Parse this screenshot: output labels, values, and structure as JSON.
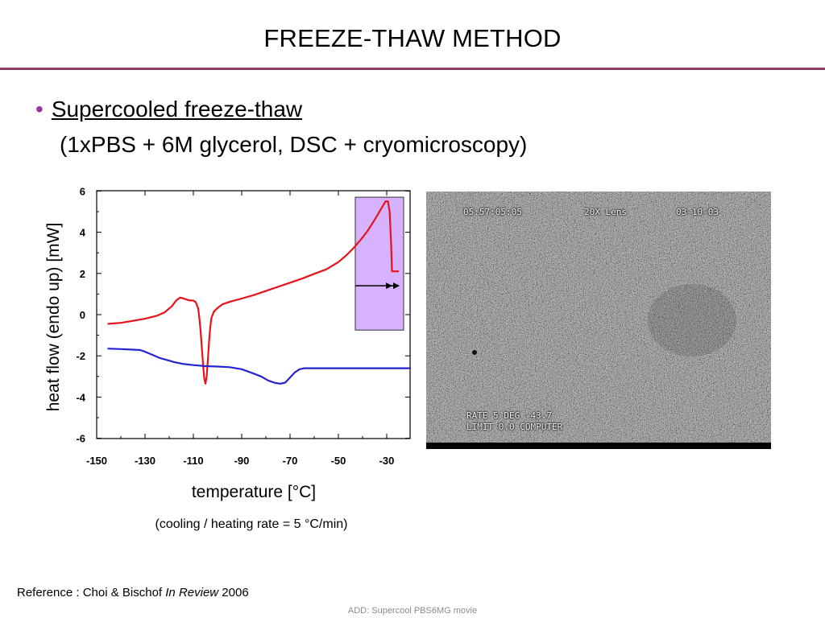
{
  "slide": {
    "title": "FREEZE-THAW METHOD",
    "bullet_marker": "•",
    "bullet_main": "Supercooled freeze-thaw",
    "bullet_sub": "(1xPBS + 6M glycerol, DSC + cryomicroscopy)",
    "reference_prefix": "Reference : Choi & Bischof ",
    "reference_italic": "In Review",
    "reference_suffix": " 2006",
    "footnote": "ADD: Supercool PBS6MG movie",
    "accent_color": "#8e3a66"
  },
  "chart_data": {
    "type": "line",
    "xlabel": "temperature [°C]",
    "ylabel": "heat flow (endo up) [mW]",
    "caption": "(cooling / heating rate = 5 °C/min)",
    "xlim": [
      -150,
      -20
    ],
    "ylim": [
      -6,
      6
    ],
    "xticks": [
      -150,
      -130,
      -110,
      -90,
      -70,
      -50,
      -30
    ],
    "yticks": [
      6,
      4,
      2,
      0,
      -2,
      -4,
      -6
    ],
    "grid": false,
    "series": [
      {
        "color": "#e8121a",
        "points": [
          [
            -145.5,
            -0.45
          ],
          [
            -140,
            -0.4
          ],
          [
            -135,
            -0.3
          ],
          [
            -130,
            -0.2
          ],
          [
            -125,
            -0.05
          ],
          [
            -122,
            0.1
          ],
          [
            -119,
            0.4
          ],
          [
            -117,
            0.7
          ],
          [
            -115.5,
            0.83
          ],
          [
            -114,
            0.78
          ],
          [
            -112,
            0.7
          ],
          [
            -110,
            0.68
          ],
          [
            -109,
            0.6
          ],
          [
            -108,
            0.3
          ],
          [
            -107.5,
            -0.2
          ],
          [
            -107,
            -0.8
          ],
          [
            -106.5,
            -1.6
          ],
          [
            -106,
            -2.4
          ],
          [
            -105.5,
            -3.1
          ],
          [
            -105,
            -3.35
          ],
          [
            -104.5,
            -3.0
          ],
          [
            -104,
            -2.2
          ],
          [
            -103.5,
            -1.3
          ],
          [
            -103,
            -0.6
          ],
          [
            -102.5,
            -0.15
          ],
          [
            -101.5,
            0.15
          ],
          [
            -100,
            0.32
          ],
          [
            -98,
            0.5
          ],
          [
            -95,
            0.62
          ],
          [
            -90,
            0.78
          ],
          [
            -85,
            0.95
          ],
          [
            -80,
            1.15
          ],
          [
            -75,
            1.35
          ],
          [
            -70,
            1.55
          ],
          [
            -65,
            1.75
          ],
          [
            -60,
            1.98
          ],
          [
            -55,
            2.2
          ],
          [
            -50,
            2.55
          ],
          [
            -47,
            2.85
          ],
          [
            -44,
            3.2
          ],
          [
            -41,
            3.6
          ],
          [
            -38,
            4.05
          ],
          [
            -35,
            4.6
          ],
          [
            -33,
            5.0
          ],
          [
            -31.5,
            5.3
          ],
          [
            -30.5,
            5.5
          ],
          [
            -29.5,
            5.5
          ],
          [
            -28.8,
            5.0
          ],
          [
            -28.2,
            3.5
          ],
          [
            -27.8,
            2.1
          ],
          [
            -27,
            2.1
          ],
          [
            -25,
            2.1
          ]
        ]
      },
      {
        "color": "#2323d2",
        "points": [
          [
            -145.5,
            -1.65
          ],
          [
            -140,
            -1.67
          ],
          [
            -135,
            -1.7
          ],
          [
            -132,
            -1.72
          ],
          [
            -130,
            -1.8
          ],
          [
            -127,
            -1.95
          ],
          [
            -124,
            -2.1
          ],
          [
            -121,
            -2.2
          ],
          [
            -118,
            -2.3
          ],
          [
            -114,
            -2.4
          ],
          [
            -110,
            -2.45
          ],
          [
            -105,
            -2.5
          ],
          [
            -100,
            -2.52
          ],
          [
            -95,
            -2.55
          ],
          [
            -90,
            -2.65
          ],
          [
            -86,
            -2.82
          ],
          [
            -82,
            -3.0
          ],
          [
            -79,
            -3.2
          ],
          [
            -76,
            -3.32
          ],
          [
            -74,
            -3.35
          ],
          [
            -72,
            -3.3
          ],
          [
            -70,
            -3.05
          ],
          [
            -68,
            -2.8
          ],
          [
            -66,
            -2.65
          ],
          [
            -64,
            -2.6
          ],
          [
            -60,
            -2.6
          ],
          [
            -50,
            -2.6
          ],
          [
            -40,
            -2.6
          ],
          [
            -30,
            -2.6
          ],
          [
            -20,
            -2.6
          ]
        ]
      }
    ],
    "annotations": [
      {
        "kind": "highlight-box",
        "x_range": [
          -43,
          -23
        ],
        "y_range": [
          -0.75,
          5.7
        ],
        "fill": "#d7b3ff"
      },
      {
        "kind": "arrow",
        "from": [
          -43,
          1.4
        ],
        "to": [
          -23,
          1.4
        ]
      }
    ]
  },
  "micrograph": {
    "overlay_top": [
      "05:57:05:05",
      "20X Lens",
      "03-10-03"
    ],
    "overlay_bottom": [
      "RATE  5 DEG -43.7",
      "LIMIT  0.0 COMPUTER"
    ]
  }
}
